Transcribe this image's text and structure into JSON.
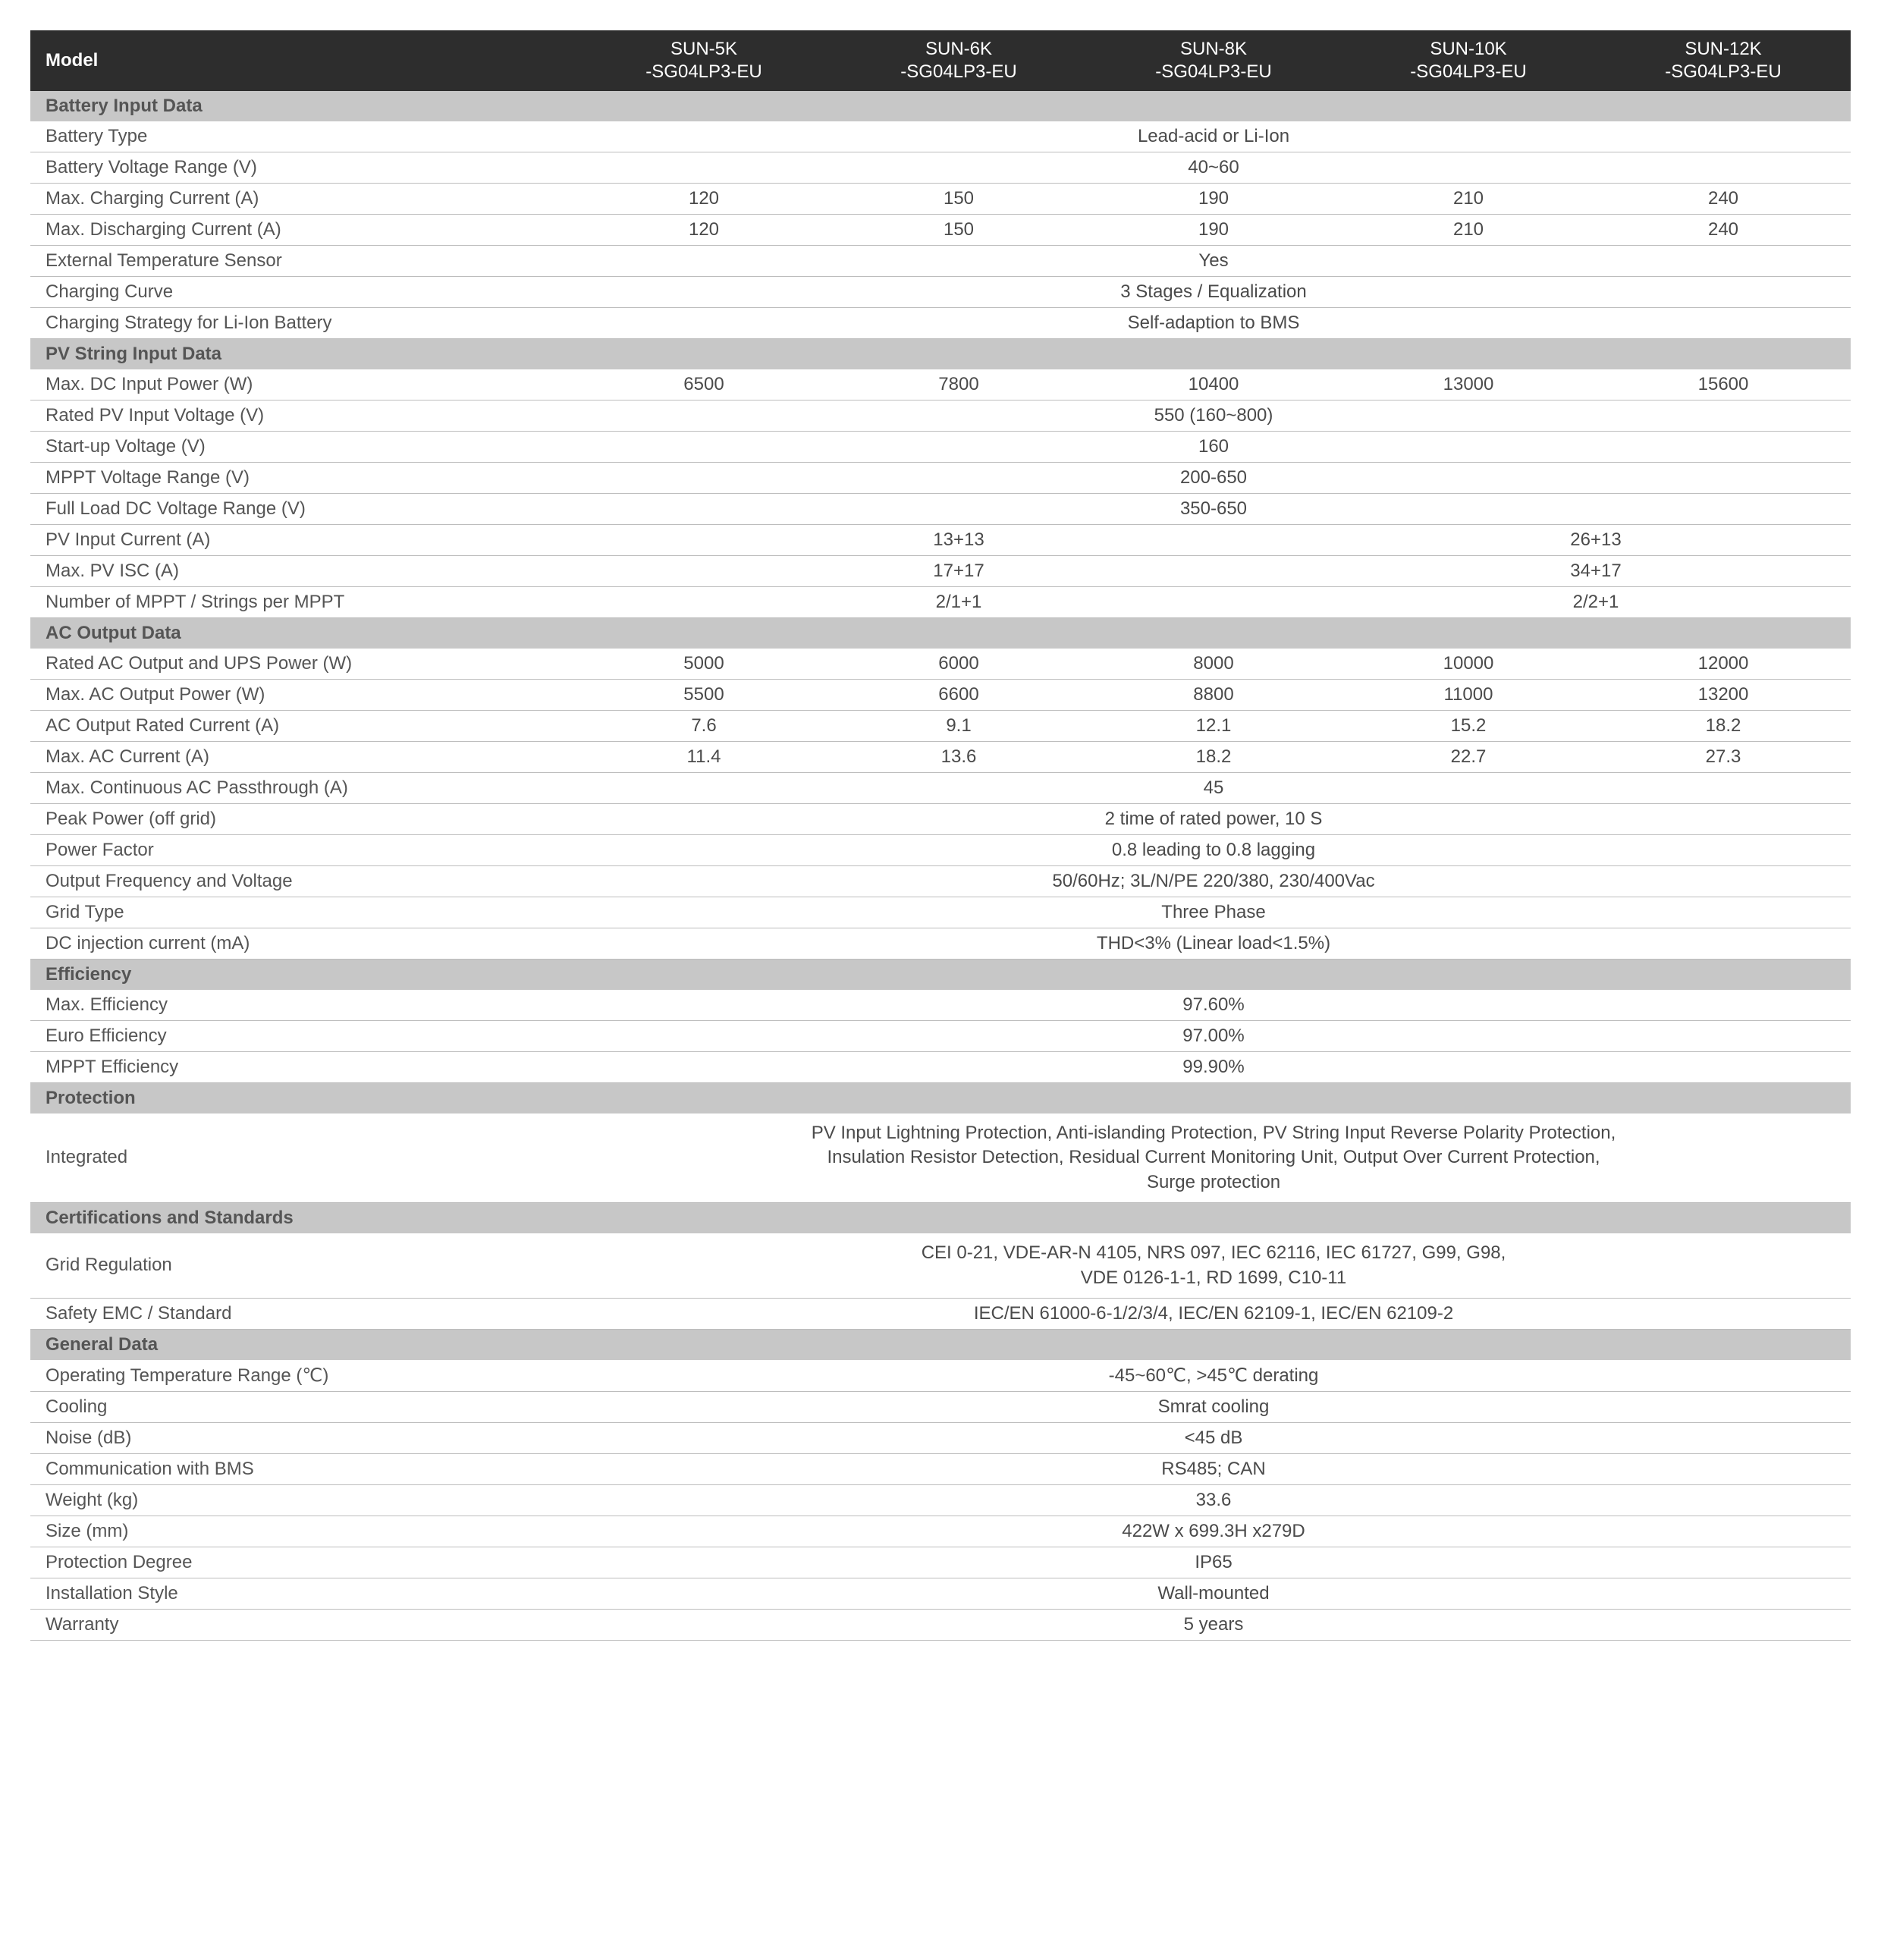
{
  "colors": {
    "header_bg": "#2d2d2d",
    "header_text": "#ffffff",
    "section_bg": "#c7c7c7",
    "section_text": "#555555",
    "row_border": "#bdbdbd",
    "body_text": "#4a4a4a"
  },
  "header": {
    "model_label": "Model",
    "models": [
      {
        "line1": "SUN-5K",
        "line2": "-SG04LP3-EU"
      },
      {
        "line1": "SUN-6K",
        "line2": "-SG04LP3-EU"
      },
      {
        "line1": "SUN-8K",
        "line2": "-SG04LP3-EU"
      },
      {
        "line1": "SUN-10K",
        "line2": "-SG04LP3-EU"
      },
      {
        "line1": "SUN-12K",
        "line2": "-SG04LP3-EU"
      }
    ]
  },
  "sections": [
    {
      "title": "Battery Input Data",
      "rows": [
        {
          "label": "Battery Type",
          "cells": [
            {
              "span": 5,
              "v": "Lead-acid or Li-Ion"
            }
          ]
        },
        {
          "label": "Battery Voltage Range (V)",
          "cells": [
            {
              "span": 1,
              "v": ""
            },
            {
              "span": 1,
              "v": ""
            },
            {
              "span": 1,
              "v": "40~60"
            },
            {
              "span": 1,
              "v": ""
            },
            {
              "span": 1,
              "v": ""
            }
          ]
        },
        {
          "label": "Max. Charging Current (A)",
          "cells": [
            {
              "span": 1,
              "v": "120"
            },
            {
              "span": 1,
              "v": "150"
            },
            {
              "span": 1,
              "v": "190"
            },
            {
              "span": 1,
              "v": "210"
            },
            {
              "span": 1,
              "v": "240"
            }
          ]
        },
        {
          "label": "Max. Discharging Current (A)",
          "cells": [
            {
              "span": 1,
              "v": "120"
            },
            {
              "span": 1,
              "v": "150"
            },
            {
              "span": 1,
              "v": "190"
            },
            {
              "span": 1,
              "v": "210"
            },
            {
              "span": 1,
              "v": "240"
            }
          ]
        },
        {
          "label": "External Temperature Sensor",
          "cells": [
            {
              "span": 5,
              "v": "Yes"
            }
          ]
        },
        {
          "label": "Charging Curve",
          "cells": [
            {
              "span": 5,
              "v": "3 Stages / Equalization"
            }
          ]
        },
        {
          "label": "Charging Strategy for Li-Ion Battery",
          "cells": [
            {
              "span": 5,
              "v": "Self-adaption to BMS"
            }
          ]
        }
      ]
    },
    {
      "title": "PV String Input Data",
      "rows": [
        {
          "label": "Max. DC Input Power (W)",
          "cells": [
            {
              "span": 1,
              "v": "6500"
            },
            {
              "span": 1,
              "v": "7800"
            },
            {
              "span": 1,
              "v": "10400"
            },
            {
              "span": 1,
              "v": "13000"
            },
            {
              "span": 1,
              "v": "15600"
            }
          ]
        },
        {
          "label": "Rated PV Input Voltage (V)",
          "cells": [
            {
              "span": 5,
              "v": "550 (160~800)"
            }
          ]
        },
        {
          "label": "Start-up Voltage (V)",
          "cells": [
            {
              "span": 5,
              "v": "160"
            }
          ]
        },
        {
          "label": "MPPT Voltage Range (V)",
          "cells": [
            {
              "span": 5,
              "v": "200-650"
            }
          ]
        },
        {
          "label": "Full Load DC Voltage Range (V)",
          "cells": [
            {
              "span": 5,
              "v": "350-650"
            }
          ]
        },
        {
          "label": "PV Input Current (A)",
          "cells": [
            {
              "span": 3,
              "v": "13+13"
            },
            {
              "span": 2,
              "v": "26+13"
            }
          ]
        },
        {
          "label": "Max. PV ISC (A)",
          "cells": [
            {
              "span": 3,
              "v": "17+17"
            },
            {
              "span": 2,
              "v": "34+17"
            }
          ]
        },
        {
          "label": "Number of MPPT / Strings per MPPT",
          "cells": [
            {
              "span": 3,
              "v": "2/1+1"
            },
            {
              "span": 2,
              "v": "2/2+1"
            }
          ]
        }
      ]
    },
    {
      "title": "AC Output Data",
      "rows": [
        {
          "label": "Rated AC Output and UPS Power (W)",
          "cells": [
            {
              "span": 1,
              "v": "5000"
            },
            {
              "span": 1,
              "v": "6000"
            },
            {
              "span": 1,
              "v": "8000"
            },
            {
              "span": 1,
              "v": "10000"
            },
            {
              "span": 1,
              "v": "12000"
            }
          ]
        },
        {
          "label": "Max. AC Output Power (W)",
          "cells": [
            {
              "span": 1,
              "v": "5500"
            },
            {
              "span": 1,
              "v": "6600"
            },
            {
              "span": 1,
              "v": "8800"
            },
            {
              "span": 1,
              "v": "11000"
            },
            {
              "span": 1,
              "v": "13200"
            }
          ]
        },
        {
          "label": "AC Output Rated Current (A)",
          "cells": [
            {
              "span": 1,
              "v": "7.6"
            },
            {
              "span": 1,
              "v": "9.1"
            },
            {
              "span": 1,
              "v": "12.1"
            },
            {
              "span": 1,
              "v": "15.2"
            },
            {
              "span": 1,
              "v": "18.2"
            }
          ]
        },
        {
          "label": "Max. AC Current (A)",
          "cells": [
            {
              "span": 1,
              "v": "11.4"
            },
            {
              "span": 1,
              "v": "13.6"
            },
            {
              "span": 1,
              "v": "18.2"
            },
            {
              "span": 1,
              "v": "22.7"
            },
            {
              "span": 1,
              "v": "27.3"
            }
          ]
        },
        {
          "label": "Max. Continuous AC Passthrough (A)",
          "cells": [
            {
              "span": 5,
              "v": "45"
            }
          ]
        },
        {
          "label": "Peak Power (off grid)",
          "cells": [
            {
              "span": 5,
              "v": "2 time of rated power, 10 S"
            }
          ]
        },
        {
          "label": "Power Factor",
          "cells": [
            {
              "span": 5,
              "v": "0.8 leading to 0.8 lagging"
            }
          ]
        },
        {
          "label": "Output Frequency and Voltage",
          "cells": [
            {
              "span": 5,
              "v": "50/60Hz; 3L/N/PE 220/380, 230/400Vac"
            }
          ]
        },
        {
          "label": "Grid Type",
          "cells": [
            {
              "span": 5,
              "v": "Three Phase"
            }
          ]
        },
        {
          "label": "DC injection current (mA)",
          "cells": [
            {
              "span": 5,
              "v": "THD<3% (Linear load<1.5%)"
            }
          ]
        }
      ]
    },
    {
      "title": "Efficiency",
      "rows": [
        {
          "label": "Max. Efficiency",
          "cells": [
            {
              "span": 5,
              "v": "97.60%"
            }
          ]
        },
        {
          "label": "Euro Efficiency",
          "cells": [
            {
              "span": 5,
              "v": "97.00%"
            }
          ]
        },
        {
          "label": "MPPT Efficiency",
          "cells": [
            {
              "span": 5,
              "v": "99.90%"
            }
          ]
        }
      ]
    },
    {
      "title": "Protection",
      "rows": [
        {
          "label": "Integrated",
          "multi": true,
          "cells": [
            {
              "span": 5,
              "lines": [
                "PV Input Lightning Protection, Anti-islanding Protection, PV String Input Reverse Polarity Protection,",
                "Insulation Resistor Detection, Residual Current Monitoring Unit, Output Over Current Protection,",
                "Surge protection"
              ]
            }
          ]
        }
      ]
    },
    {
      "title": "Certifications and Standards",
      "rows": [
        {
          "label": "Grid Regulation",
          "multi": true,
          "cells": [
            {
              "span": 5,
              "lines": [
                "CEI 0-21, VDE-AR-N 4105, NRS 097, IEC 62116, IEC 61727, G99, G98,",
                "VDE 0126-1-1, RD 1699, C10-11"
              ]
            }
          ]
        },
        {
          "label": "Safety EMC / Standard",
          "cells": [
            {
              "span": 5,
              "v": "IEC/EN 61000-6-1/2/3/4, IEC/EN 62109-1, IEC/EN 62109-2"
            }
          ]
        }
      ]
    },
    {
      "title": "General Data",
      "rows": [
        {
          "label": "Operating Temperature Range (℃)",
          "cells": [
            {
              "span": 5,
              "v": "-45~60℃, >45℃ derating"
            }
          ]
        },
        {
          "label": "Cooling",
          "cells": [
            {
              "span": 5,
              "v": "Smrat cooling"
            }
          ]
        },
        {
          "label": "Noise (dB)",
          "cells": [
            {
              "span": 5,
              "v": "<45 dB"
            }
          ]
        },
        {
          "label": "Communication with BMS",
          "cells": [
            {
              "span": 5,
              "v": "RS485; CAN"
            }
          ]
        },
        {
          "label": "Weight (kg)",
          "cells": [
            {
              "span": 5,
              "v": "33.6"
            }
          ]
        },
        {
          "label": "Size (mm)",
          "cells": [
            {
              "span": 5,
              "v": "422W x 699.3H x279D"
            }
          ]
        },
        {
          "label": "Protection Degree",
          "cells": [
            {
              "span": 5,
              "v": "IP65"
            }
          ]
        },
        {
          "label": "Installation Style",
          "cells": [
            {
              "span": 5,
              "v": "Wall-mounted"
            }
          ]
        },
        {
          "label": "Warranty",
          "cells": [
            {
              "span": 5,
              "v": "5 years"
            }
          ]
        }
      ]
    }
  ]
}
